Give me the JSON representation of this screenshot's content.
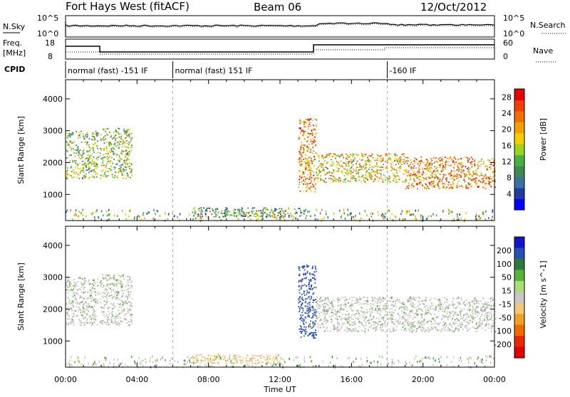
{
  "header": {
    "station": "Fort Hays West (fitACF)",
    "beam": "Beam 06",
    "date": "12/Oct/2012"
  },
  "top_strips": {
    "nsky_label": "N.Sky",
    "nsearch_label": "N.Search",
    "noise_ticks_left": [
      "10^5",
      "10^0"
    ],
    "noise_ticks_right": [
      "10^5",
      "10^0"
    ],
    "freq_label_1": "Freq.",
    "freq_label_2": "[MHz]",
    "freq_ticks": [
      "18",
      "8"
    ],
    "nave_label": "Nave",
    "nave_ticks": [
      "60",
      "0"
    ],
    "cpid_label": "CPID",
    "cpid_segments": [
      {
        "label": "normal (fast) -151 IF",
        "start_hr": 0,
        "end_hr": 6
      },
      {
        "label": "normal (fast) 151 IF",
        "start_hr": 6,
        "end_hr": 18
      },
      {
        "label": "-160 IF",
        "start_hr": 18,
        "end_hr": 24
      }
    ]
  },
  "colors": {
    "power_scale": [
      "#0000ff",
      "#203ca0",
      "#3a6fa8",
      "#3d8a55",
      "#48b040",
      "#9bd21e",
      "#f0d000",
      "#f0a000",
      "#f07000",
      "#f04000",
      "#e80000"
    ],
    "velocity_scale": [
      "#1414c8",
      "#2850b4",
      "#2e7a3c",
      "#55b43c",
      "#aadc78",
      "#c8c8c8",
      "#f0c878",
      "#f0a028",
      "#f06a00",
      "#e82800",
      "#e00000"
    ],
    "ground_scatter": "#c0c0b8"
  },
  "chart_data": [
    {
      "type": "heatmap",
      "title": "",
      "xlabel": "Time UT",
      "ylabel": "Slant Range [km]",
      "x_ticks": [
        "00:00",
        "04:00",
        "08:00",
        "12:00",
        "16:00",
        "20:00",
        "00:00"
      ],
      "xlim_hours": [
        0,
        24
      ],
      "y_ticks": [
        1000,
        2000,
        3000,
        4000
      ],
      "ylim_km": [
        180,
        4600
      ],
      "colorbar_label": "Power [dB]",
      "colorbar_ticks": [
        4,
        8,
        12,
        16,
        20,
        24,
        28
      ],
      "colorbar_range": [
        0,
        30
      ],
      "scatter_bands": [
        {
          "start_hr": 0.0,
          "end_hr": 1.8,
          "range_start_km": 1500,
          "range_end_km": 3000,
          "power_db": 14
        },
        {
          "start_hr": 1.9,
          "end_hr": 3.7,
          "range_start_km": 1500,
          "range_end_km": 3100,
          "power_db": 14
        },
        {
          "start_hr": 13.0,
          "end_hr": 14.0,
          "range_start_km": 1100,
          "range_end_km": 3400,
          "power_db": 22
        },
        {
          "start_hr": 14.0,
          "end_hr": 19.0,
          "range_start_km": 1400,
          "range_end_km": 2300,
          "power_db": 18
        },
        {
          "start_hr": 19.0,
          "end_hr": 24.0,
          "range_start_km": 1200,
          "range_end_km": 2200,
          "power_db": 22
        },
        {
          "start_hr": 7.0,
          "end_hr": 13.5,
          "range_start_km": 300,
          "range_end_km": 600,
          "power_db": 10
        }
      ]
    },
    {
      "type": "heatmap",
      "title": "",
      "xlabel": "Time UT",
      "ylabel": "Slant Range [km]",
      "x_ticks": [
        "00:00",
        "04:00",
        "08:00",
        "12:00",
        "16:00",
        "20:00",
        "00:00"
      ],
      "xlim_hours": [
        0,
        24
      ],
      "y_ticks": [
        1000,
        2000,
        3000,
        4000
      ],
      "ylim_km": [
        180,
        4600
      ],
      "colorbar_label": "Velocity [m s^-1]",
      "colorbar_ticks": [
        200,
        100,
        50,
        15,
        -15,
        -50,
        -100,
        -200
      ],
      "scatter_bands": [
        {
          "start_hr": 0.0,
          "end_hr": 1.8,
          "range_start_km": 1500,
          "range_end_km": 3000,
          "velocity": 0
        },
        {
          "start_hr": 1.9,
          "end_hr": 3.7,
          "range_start_km": 1500,
          "range_end_km": 3100,
          "velocity": 0
        },
        {
          "start_hr": 13.0,
          "end_hr": 14.0,
          "range_start_km": 1100,
          "range_end_km": 3400,
          "velocity": 150
        },
        {
          "start_hr": 14.0,
          "end_hr": 24.0,
          "range_start_km": 1300,
          "range_end_km": 2400,
          "velocity": 0
        },
        {
          "start_hr": 7.0,
          "end_hr": 12.0,
          "range_start_km": 300,
          "range_end_km": 600,
          "velocity": -80
        }
      ]
    }
  ]
}
